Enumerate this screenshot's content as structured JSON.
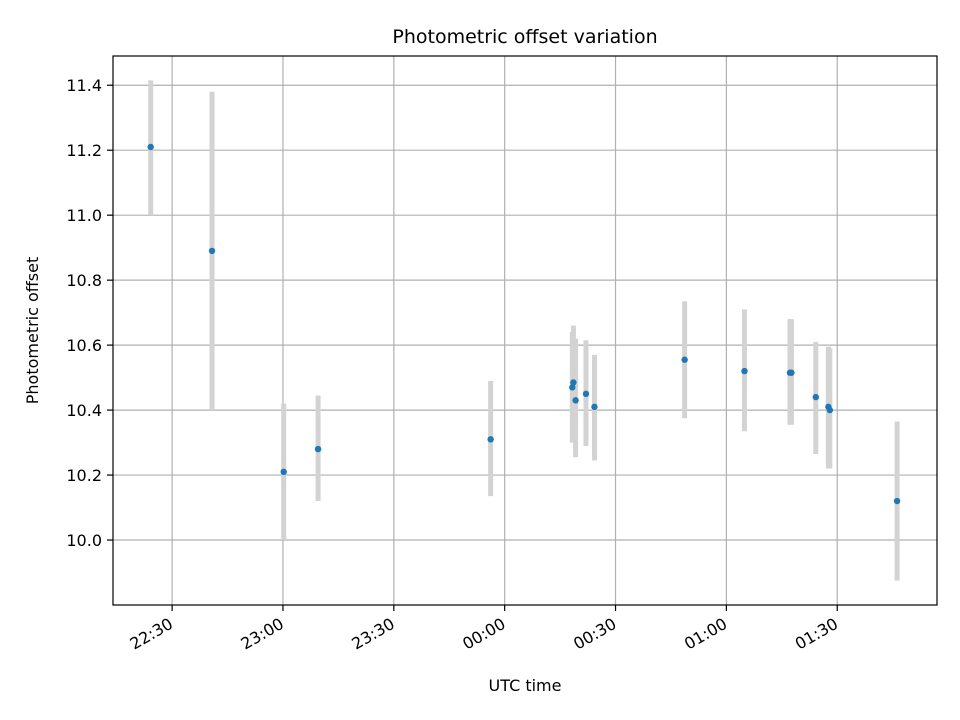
{
  "chart_data": {
    "type": "scatter",
    "title": "Photometric offset variation",
    "xlabel": "UTC time",
    "ylabel": "Photometric offset",
    "x_axis": {
      "unit": "minutes after 22:00 UTC (date wraps at 00:00)",
      "range": [
        14,
        237
      ],
      "ticks": [
        {
          "value": 30,
          "label": "22:30"
        },
        {
          "value": 60,
          "label": "23:00"
        },
        {
          "value": 90,
          "label": "23:30"
        },
        {
          "value": 120,
          "label": "00:00"
        },
        {
          "value": 150,
          "label": "00:30"
        },
        {
          "value": 180,
          "label": "01:00"
        },
        {
          "value": 210,
          "label": "01:30"
        }
      ],
      "tick_label_rotation_deg": -30
    },
    "y_axis": {
      "range": [
        9.8,
        11.49
      ],
      "ticks": [
        {
          "value": 10.0,
          "label": "10.0"
        },
        {
          "value": 10.2,
          "label": "10.2"
        },
        {
          "value": 10.4,
          "label": "10.4"
        },
        {
          "value": 10.6,
          "label": "10.6"
        },
        {
          "value": 10.8,
          "label": "10.8"
        },
        {
          "value": 11.0,
          "label": "11.0"
        },
        {
          "value": 11.2,
          "label": "11.2"
        },
        {
          "value": 11.4,
          "label": "11.4"
        }
      ]
    },
    "grid": true,
    "legend": "none",
    "colors": {
      "point": "#1f77b4",
      "errorbar": "#d3d3d3",
      "grid": "#b0b0b0"
    },
    "points": [
      {
        "x": 24.2,
        "y": 11.21,
        "yerr_low": 11.0,
        "yerr_high": 11.415
      },
      {
        "x": 40.8,
        "y": 10.89,
        "yerr_low": 10.4,
        "yerr_high": 11.38
      },
      {
        "x": 60.2,
        "y": 10.21,
        "yerr_low": 10.0,
        "yerr_high": 10.42
      },
      {
        "x": 69.5,
        "y": 10.28,
        "yerr_low": 10.12,
        "yerr_high": 10.445
      },
      {
        "x": 116.2,
        "y": 10.31,
        "yerr_low": 10.135,
        "yerr_high": 10.49
      },
      {
        "x": 138.3,
        "y": 10.47,
        "yerr_low": 10.3,
        "yerr_high": 10.64
      },
      {
        "x": 138.6,
        "y": 10.485,
        "yerr_low": 10.31,
        "yerr_high": 10.66
      },
      {
        "x": 139.2,
        "y": 10.43,
        "yerr_low": 10.255,
        "yerr_high": 10.62
      },
      {
        "x": 142.0,
        "y": 10.45,
        "yerr_low": 10.29,
        "yerr_high": 10.615
      },
      {
        "x": 144.3,
        "y": 10.41,
        "yerr_low": 10.245,
        "yerr_high": 10.57
      },
      {
        "x": 168.7,
        "y": 10.555,
        "yerr_low": 10.375,
        "yerr_high": 10.735
      },
      {
        "x": 184.9,
        "y": 10.52,
        "yerr_low": 10.335,
        "yerr_high": 10.71
      },
      {
        "x": 197.2,
        "y": 10.515,
        "yerr_low": 10.355,
        "yerr_high": 10.68
      },
      {
        "x": 197.6,
        "y": 10.515,
        "yerr_low": 10.355,
        "yerr_high": 10.68
      },
      {
        "x": 204.2,
        "y": 10.44,
        "yerr_low": 10.265,
        "yerr_high": 10.61
      },
      {
        "x": 207.6,
        "y": 10.41,
        "yerr_low": 10.22,
        "yerr_high": 10.595
      },
      {
        "x": 208.0,
        "y": 10.4,
        "yerr_low": 10.22,
        "yerr_high": 10.59
      },
      {
        "x": 226.2,
        "y": 10.12,
        "yerr_low": 9.875,
        "yerr_high": 10.365
      }
    ]
  }
}
